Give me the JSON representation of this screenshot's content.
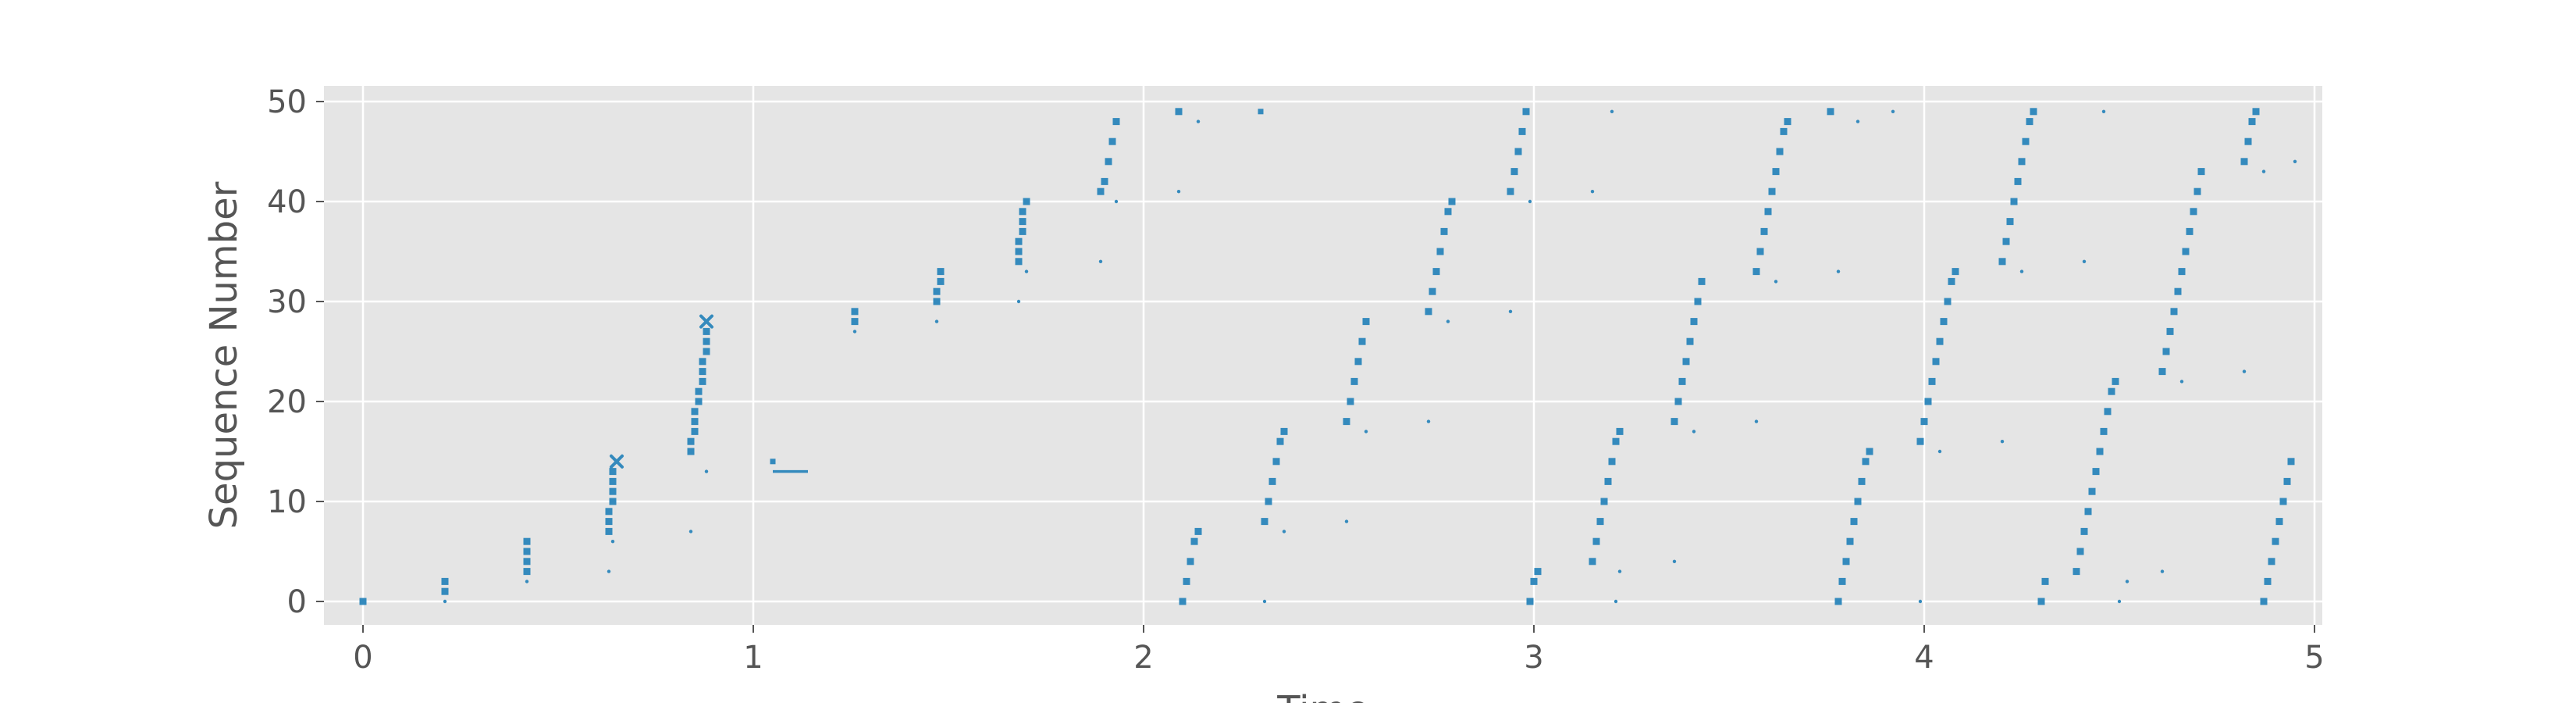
{
  "chart_data": {
    "type": "scatter",
    "title": "",
    "xlabel": "Time",
    "ylabel": "Sequence Number",
    "xlim": [
      -0.1,
      5.0
    ],
    "ylim": [
      -2.5,
      51.5
    ],
    "xticks": [
      0,
      1,
      2,
      3,
      4,
      5
    ],
    "yticks": [
      0,
      10,
      20,
      30,
      40,
      50
    ],
    "grid": true,
    "legend": "none",
    "colors": {
      "marker": "#348ABD",
      "plot_bg": "#E5E5E5",
      "grid": "#FFFFFF",
      "text": "#555555"
    },
    "series": [
      {
        "marker": "square",
        "points": [
          [
            0,
            0
          ],
          [
            0.21,
            1
          ],
          [
            0.21,
            2
          ],
          [
            0.42,
            3
          ],
          [
            0.42,
            4
          ],
          [
            0.42,
            5
          ],
          [
            0.42,
            6
          ],
          [
            0.63,
            7
          ],
          [
            0.63,
            8
          ],
          [
            0.63,
            9
          ],
          [
            0.64,
            10
          ],
          [
            0.64,
            11
          ],
          [
            0.64,
            12
          ],
          [
            0.64,
            13
          ],
          [
            0.84,
            15
          ],
          [
            0.84,
            16
          ],
          [
            0.85,
            17
          ],
          [
            0.85,
            18
          ],
          [
            0.85,
            19
          ],
          [
            0.86,
            20
          ],
          [
            0.86,
            21
          ],
          [
            0.87,
            22
          ],
          [
            0.87,
            23
          ],
          [
            0.87,
            24
          ],
          [
            0.88,
            25
          ],
          [
            0.88,
            26
          ],
          [
            0.88,
            27
          ],
          [
            1.26,
            28
          ],
          [
            1.26,
            29
          ],
          [
            1.47,
            30
          ],
          [
            1.47,
            31
          ],
          [
            1.48,
            32
          ],
          [
            1.48,
            33
          ],
          [
            1.68,
            34
          ],
          [
            1.68,
            35
          ],
          [
            1.68,
            36
          ],
          [
            1.69,
            37
          ],
          [
            1.69,
            38
          ],
          [
            1.69,
            39
          ],
          [
            1.7,
            40
          ],
          [
            1.89,
            41
          ],
          [
            1.9,
            42
          ],
          [
            1.91,
            44
          ],
          [
            1.92,
            46
          ],
          [
            1.93,
            48
          ],
          [
            2.09,
            49
          ],
          [
            2.1,
            0
          ],
          [
            2.11,
            2
          ],
          [
            2.12,
            4
          ],
          [
            2.13,
            6
          ],
          [
            2.14,
            7
          ],
          [
            2.31,
            8
          ],
          [
            2.32,
            10
          ],
          [
            2.33,
            12
          ],
          [
            2.34,
            14
          ],
          [
            2.35,
            16
          ],
          [
            2.36,
            17
          ],
          [
            2.52,
            18
          ],
          [
            2.53,
            20
          ],
          [
            2.54,
            22
          ],
          [
            2.55,
            24
          ],
          [
            2.56,
            26
          ],
          [
            2.57,
            28
          ],
          [
            2.73,
            29
          ],
          [
            2.74,
            31
          ],
          [
            2.75,
            33
          ],
          [
            2.76,
            35
          ],
          [
            2.77,
            37
          ],
          [
            2.78,
            39
          ],
          [
            2.79,
            40
          ],
          [
            2.94,
            41
          ],
          [
            2.95,
            43
          ],
          [
            2.96,
            45
          ],
          [
            2.97,
            47
          ],
          [
            2.98,
            49
          ],
          [
            2.99,
            0
          ],
          [
            3.0,
            2
          ],
          [
            3.01,
            3
          ],
          [
            3.15,
            4
          ],
          [
            3.16,
            6
          ],
          [
            3.17,
            8
          ],
          [
            3.18,
            10
          ],
          [
            3.19,
            12
          ],
          [
            3.2,
            14
          ],
          [
            3.21,
            16
          ],
          [
            3.22,
            17
          ],
          [
            3.36,
            18
          ],
          [
            3.37,
            20
          ],
          [
            3.38,
            22
          ],
          [
            3.39,
            24
          ],
          [
            3.4,
            26
          ],
          [
            3.41,
            28
          ],
          [
            3.42,
            30
          ],
          [
            3.43,
            32
          ],
          [
            3.57,
            33
          ],
          [
            3.58,
            35
          ],
          [
            3.59,
            37
          ],
          [
            3.6,
            39
          ],
          [
            3.61,
            41
          ],
          [
            3.62,
            43
          ],
          [
            3.63,
            45
          ],
          [
            3.64,
            47
          ],
          [
            3.65,
            48
          ],
          [
            3.76,
            49
          ],
          [
            3.78,
            0
          ],
          [
            3.79,
            2
          ],
          [
            3.8,
            4
          ],
          [
            3.81,
            6
          ],
          [
            3.82,
            8
          ],
          [
            3.83,
            10
          ],
          [
            3.84,
            12
          ],
          [
            3.85,
            14
          ],
          [
            3.86,
            15
          ],
          [
            3.99,
            16
          ],
          [
            4.0,
            18
          ],
          [
            4.01,
            20
          ],
          [
            4.02,
            22
          ],
          [
            4.03,
            24
          ],
          [
            4.04,
            26
          ],
          [
            4.05,
            28
          ],
          [
            4.06,
            30
          ],
          [
            4.07,
            32
          ],
          [
            4.08,
            33
          ],
          [
            4.2,
            34
          ],
          [
            4.21,
            36
          ],
          [
            4.22,
            38
          ],
          [
            4.23,
            40
          ],
          [
            4.24,
            42
          ],
          [
            4.25,
            44
          ],
          [
            4.26,
            46
          ],
          [
            4.27,
            48
          ],
          [
            4.28,
            49
          ],
          [
            4.3,
            0
          ],
          [
            4.31,
            2
          ],
          [
            4.39,
            3
          ],
          [
            4.4,
            5
          ],
          [
            4.41,
            7
          ],
          [
            4.42,
            9
          ],
          [
            4.43,
            11
          ],
          [
            4.44,
            13
          ],
          [
            4.45,
            15
          ],
          [
            4.46,
            17
          ],
          [
            4.47,
            19
          ],
          [
            4.48,
            21
          ],
          [
            4.49,
            22
          ],
          [
            4.61,
            23
          ],
          [
            4.62,
            25
          ],
          [
            4.63,
            27
          ],
          [
            4.64,
            29
          ],
          [
            4.65,
            31
          ],
          [
            4.66,
            33
          ],
          [
            4.67,
            35
          ],
          [
            4.68,
            37
          ],
          [
            4.69,
            39
          ],
          [
            4.7,
            41
          ],
          [
            4.71,
            43
          ],
          [
            4.82,
            44
          ],
          [
            4.83,
            46
          ],
          [
            4.84,
            48
          ],
          [
            4.85,
            49
          ],
          [
            4.87,
            0
          ],
          [
            4.88,
            2
          ],
          [
            4.89,
            4
          ],
          [
            4.9,
            6
          ],
          [
            4.91,
            8
          ],
          [
            4.92,
            10
          ],
          [
            4.93,
            12
          ],
          [
            4.94,
            14
          ]
        ]
      },
      {
        "marker": "x",
        "points": [
          [
            0.65,
            14
          ],
          [
            0.88,
            28
          ]
        ]
      },
      {
        "marker": "dot",
        "points": [
          [
            0.21,
            0
          ],
          [
            0.42,
            2
          ],
          [
            0.63,
            3
          ],
          [
            0.64,
            6
          ],
          [
            0.84,
            7
          ],
          [
            0.88,
            13
          ],
          [
            1.26,
            27
          ],
          [
            1.47,
            28
          ],
          [
            1.68,
            30
          ],
          [
            1.7,
            33
          ],
          [
            1.89,
            34
          ],
          [
            1.93,
            40
          ],
          [
            2.09,
            41
          ],
          [
            2.14,
            48
          ],
          [
            2.31,
            0
          ],
          [
            2.36,
            7
          ],
          [
            2.52,
            8
          ],
          [
            2.57,
            17
          ],
          [
            2.73,
            18
          ],
          [
            2.78,
            28
          ],
          [
            2.94,
            29
          ],
          [
            2.99,
            40
          ],
          [
            3.15,
            41
          ],
          [
            3.2,
            49
          ],
          [
            3.21,
            0
          ],
          [
            3.22,
            3
          ],
          [
            3.36,
            4
          ],
          [
            3.41,
            17
          ],
          [
            3.57,
            18
          ],
          [
            3.62,
            32
          ],
          [
            3.78,
            33
          ],
          [
            3.83,
            48
          ],
          [
            3.92,
            49
          ],
          [
            3.99,
            0
          ],
          [
            4.04,
            15
          ],
          [
            4.2,
            16
          ],
          [
            4.25,
            33
          ],
          [
            4.41,
            34
          ],
          [
            4.46,
            49
          ],
          [
            4.5,
            0
          ],
          [
            4.52,
            2
          ],
          [
            4.61,
            3
          ],
          [
            4.66,
            22
          ],
          [
            4.82,
            23
          ],
          [
            4.87,
            43
          ],
          [
            4.95,
            44
          ]
        ]
      },
      {
        "marker": "hline",
        "segments": [
          [
            1.05,
            1.14,
            13
          ]
        ]
      },
      {
        "marker": "small-square",
        "points": [
          [
            1.05,
            14
          ],
          [
            2.3,
            49
          ]
        ]
      }
    ]
  }
}
